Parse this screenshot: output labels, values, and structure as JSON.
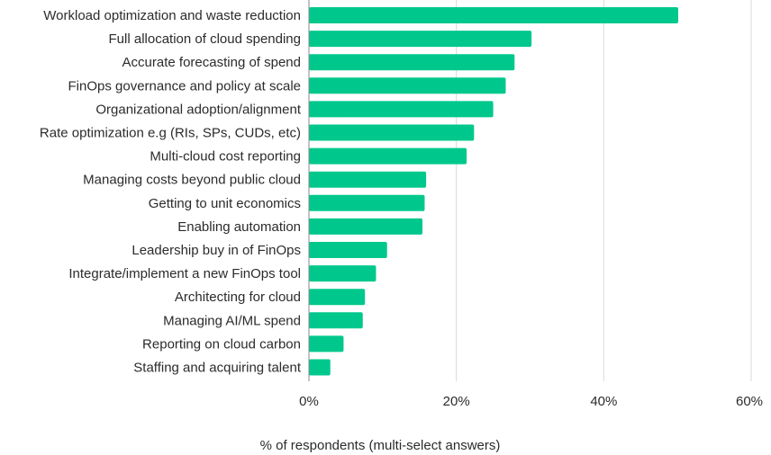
{
  "chart_data": {
    "type": "bar",
    "orientation": "horizontal",
    "categories": [
      "Workload optimization and waste reduction",
      "Full allocation of cloud spending",
      "Accurate forecasting of spend",
      "FinOps governance and policy at scale",
      "Organizational adoption/alignment",
      "Rate optimization e.g (RIs, SPs, CUDs, etc)",
      "Multi-cloud cost reporting",
      "Managing costs beyond public cloud",
      "Getting to unit economics",
      "Enabling automation",
      "Leadership buy in of FinOps",
      "Integrate/implement a new FinOps tool",
      "Architecting for cloud",
      "Managing AI/ML spend",
      "Reporting on cloud carbon",
      "Staffing and acquiring talent"
    ],
    "values": [
      50.1,
      30.2,
      27.9,
      26.7,
      25.0,
      22.4,
      21.4,
      15.9,
      15.7,
      15.4,
      10.6,
      9.1,
      7.6,
      7.3,
      4.7,
      2.9
    ],
    "xlabel": "% of respondents (multi-select answers)",
    "xlim": [
      0,
      60
    ],
    "xticks": [
      0,
      20,
      40,
      60
    ],
    "xtick_labels": [
      "0%",
      "20%",
      "40%",
      "60%"
    ],
    "grid": true,
    "colors": {
      "bar": "#00c88c",
      "grid": "#d9d9d9",
      "axis": "#888888",
      "text": "#2b2b2b"
    }
  }
}
